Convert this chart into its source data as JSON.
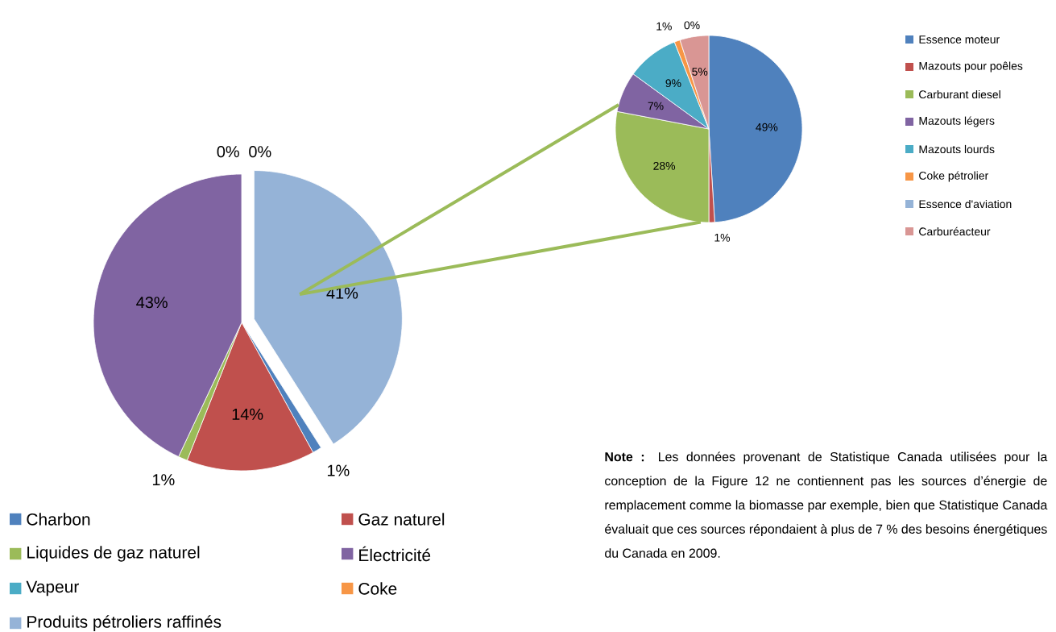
{
  "chart_data": [
    {
      "type": "pie",
      "categories": [
        "Charbon",
        "Gaz naturel",
        "Liquides de gaz naturel",
        "Électricité",
        "Vapeur",
        "Coke",
        "Produits pétroliers raffinés"
      ],
      "values": [
        1,
        14,
        1,
        43,
        0,
        0,
        41
      ],
      "colors": [
        "#4f81bd",
        "#c0504d",
        "#9bbb59",
        "#8064a2",
        "#4bacc6",
        "#f79646",
        "#95b3d7"
      ],
      "value_labels": [
        "1%",
        "14%",
        "1%",
        "43%",
        "0%",
        "0%",
        "41%"
      ],
      "legend": "bottom",
      "annotations": [
        "**Note :** Les données provenant de Statistique Canada utilisées pour la conception de la Figure 12 ne contiennent pas les sources d’énergie de remplacement comme la biomasse par exemple, bien que Statistique Canada évaluait que ces sources répondaient à plus de 7 % des besoins énergétiques du Canada en 2009."
      ]
    },
    {
      "type": "pie",
      "categories": [
        "Essence moteur",
        "Mazouts pour poêles",
        "Carburant diesel",
        "Mazouts légers",
        "Mazouts lourds",
        "Coke pétrolier",
        "Essence d'aviation",
        "Carburéacteur"
      ],
      "values": [
        49,
        1,
        28,
        7,
        9,
        1,
        0,
        5
      ],
      "colors": [
        "#4f81bd",
        "#c0504d",
        "#9bbb59",
        "#8064a2",
        "#4bacc6",
        "#f79646",
        "#95b3d7",
        "#d99694"
      ],
      "value_labels": [
        "49%",
        "1%",
        "28%",
        "7%",
        "9%",
        "1%",
        "0%",
        "5%"
      ],
      "legend": "right"
    }
  ]
}
